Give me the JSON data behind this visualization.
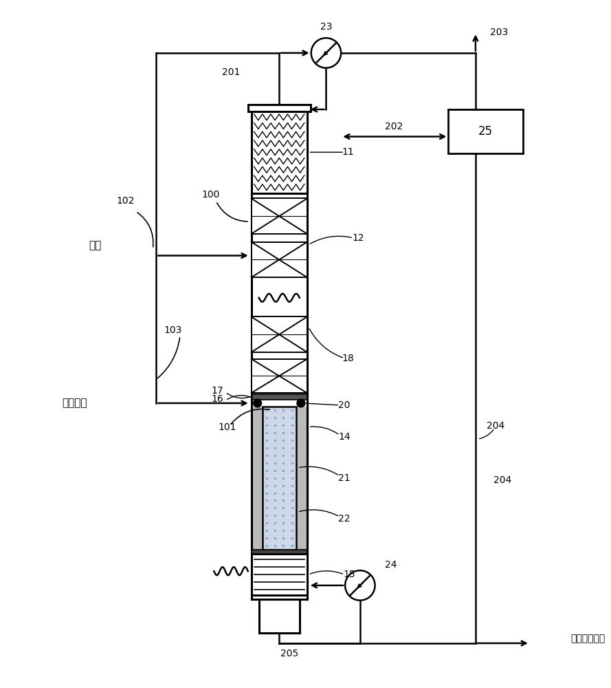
{
  "bg": "#ffffff",
  "lc": "#000000",
  "fig_w": 8.89,
  "fig_h": 10.0,
  "labels": {
    "methanol": "甲醇",
    "gasoline": "汽油原料",
    "product": "醚化汽油产物",
    "n11": "11",
    "n12": "12",
    "n14": "14",
    "n15": "15",
    "n16": "16",
    "n17": "17",
    "n18": "18",
    "n20": "20",
    "n21": "21",
    "n22": "22",
    "n23": "23",
    "n24": "24",
    "n25": "25",
    "n100": "100",
    "n101": "101",
    "n102": "102",
    "n103": "103",
    "n201": "201",
    "n202": "202",
    "n203": "203",
    "n204": "204",
    "n205": "205"
  }
}
